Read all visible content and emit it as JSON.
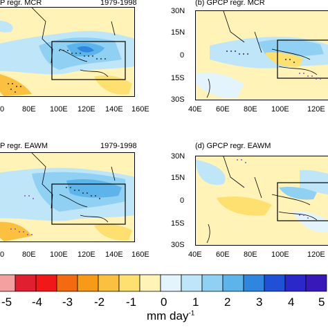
{
  "panels": [
    {
      "title": "P regr. MCR",
      "period": "1979-1998",
      "x_ticks": [
        "0",
        "80E",
        "100E",
        "120E",
        "140E",
        "160E"
      ]
    },
    {
      "title": "(b) GPCP regr. MCR",
      "y_ticks": [
        "30N",
        "15N",
        "0",
        "15S",
        "30S"
      ],
      "x_ticks": [
        "40E",
        "60E",
        "80E",
        "100E",
        "120E"
      ]
    },
    {
      "title": "P regr. EAWM",
      "period": "1979-1998",
      "x_ticks": [
        "0",
        "80E",
        "100E",
        "120E",
        "140E",
        "160E"
      ]
    },
    {
      "title": "(d) GPCP regr. EAWM",
      "y_ticks": [
        "30N",
        "15N",
        "0",
        "15S",
        "30S"
      ],
      "x_ticks": [
        "40E",
        "60E",
        "80E",
        "100E",
        "120E"
      ]
    }
  ],
  "colorbar": {
    "labels": [
      "-5",
      "-4",
      "-3",
      "-2",
      "-1",
      "0",
      "1",
      "2",
      "3",
      "4",
      "5"
    ],
    "units": "mm day",
    "units_exp": "-1",
    "colors": [
      "#f4a0a0",
      "#e02030",
      "#f01818",
      "#f46a10",
      "#f79a18",
      "#fbc040",
      "#fde070",
      "#fff3b8",
      "#e4f4fc",
      "#bfe6f8",
      "#90d0f2",
      "#5cb4ea",
      "#2e86de",
      "#2050d8",
      "#2a28c8",
      "#3818b8"
    ]
  }
}
